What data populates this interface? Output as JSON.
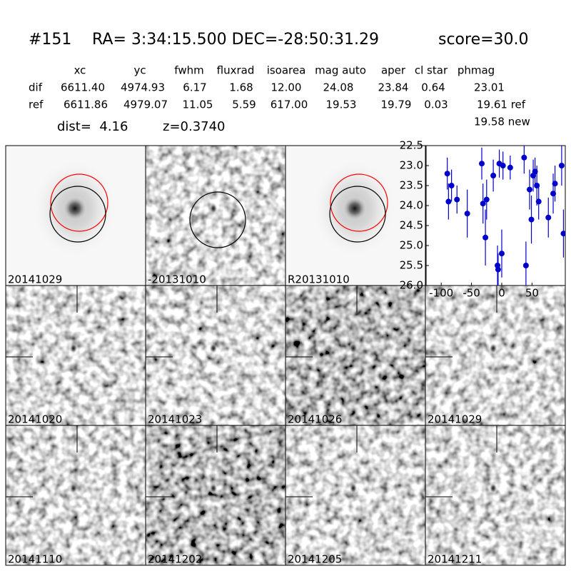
{
  "header": {
    "id": "#151",
    "coords": "RA= 3:34:15.500 DEC=-28:50:31.29",
    "score": "score=30.0"
  },
  "table": {
    "columns": [
      "xc",
      "yc",
      "fwhm",
      "fluxrad",
      "isoarea",
      "mag auto",
      "aper",
      "cl star",
      "phmag"
    ],
    "rows": [
      {
        "label": "dif",
        "cells": [
          "6611.40",
          "4974.93",
          "6.17",
          "1.68",
          "12.00",
          "24.08",
          "23.84",
          "0.64",
          "23.01"
        ]
      },
      {
        "label": "ref",
        "cells": [
          "6611.86",
          "4979.07",
          "11.05",
          "5.59",
          "617.00",
          "19.53",
          "19.79",
          "0.03",
          "19.61 ref"
        ]
      }
    ],
    "note": "19.58 new"
  },
  "dist": "dist=  4.16",
  "z": "z=0.3740",
  "stamps": [
    {
      "label": "20141029",
      "label_color": "#000000"
    },
    {
      "label": "-20131010",
      "label_color": "#000000"
    },
    {
      "label": "R20131010",
      "label_color": "#000000"
    },
    {
      "label": "20141020",
      "label_color": "#000000"
    },
    {
      "label": "20141023",
      "label_color": "#000000"
    },
    {
      "label": "20141026",
      "label_color": "#000000"
    },
    {
      "label": "20141029",
      "label_color": "#ff0000"
    },
    {
      "label": "20141110",
      "label_color": "#000000"
    },
    {
      "label": "20141202",
      "label_color": "#000000"
    },
    {
      "label": "20141205",
      "label_color": "#000000"
    },
    {
      "label": "20141211",
      "label_color": "#000000"
    }
  ],
  "light_curve": {
    "type": "scatter",
    "color": "#0000cc",
    "x": [
      -90,
      -88,
      -83,
      -74,
      -57,
      -33,
      -31,
      -27,
      -25,
      -14,
      -7,
      -6,
      -4,
      0,
      2,
      14,
      37,
      40,
      46,
      49,
      52,
      55,
      58,
      61,
      77,
      85,
      88,
      99,
      102
    ],
    "values": [
      23.2,
      23.9,
      23.5,
      23.85,
      24.2,
      22.95,
      23.95,
      24.8,
      23.85,
      23.25,
      25.5,
      25.6,
      22.95,
      25.2,
      23.0,
      23.05,
      22.8,
      25.5,
      23.6,
      24.35,
      23.25,
      23.15,
      23.5,
      23.9,
      24.3,
      23.7,
      23.45,
      23.0,
      24.7
    ],
    "errors": [
      0.4,
      0.45,
      0.4,
      0.35,
      0.6,
      0.4,
      0.5,
      0.7,
      0.5,
      0.4,
      0.5,
      0.4,
      0.35,
      0.6,
      0.35,
      0.3,
      0.4,
      0.6,
      0.5,
      0.6,
      0.4,
      0.35,
      0.5,
      0.45,
      0.5,
      0.5,
      0.45,
      0.5,
      0.6
    ],
    "xlim": [
      -125,
      105
    ],
    "ylim": [
      26,
      22.5
    ],
    "xticks": [
      -100,
      -50,
      0,
      50
    ],
    "yticks": [
      22.5,
      {
        "value": 23,
        "label": "23.0"
      },
      23.5,
      {
        "value": 24,
        "label": "24.0"
      },
      24.5,
      {
        "value": 25,
        "label": "25.0"
      },
      25.5,
      {
        "value": 26,
        "label": "26.0"
      }
    ]
  }
}
